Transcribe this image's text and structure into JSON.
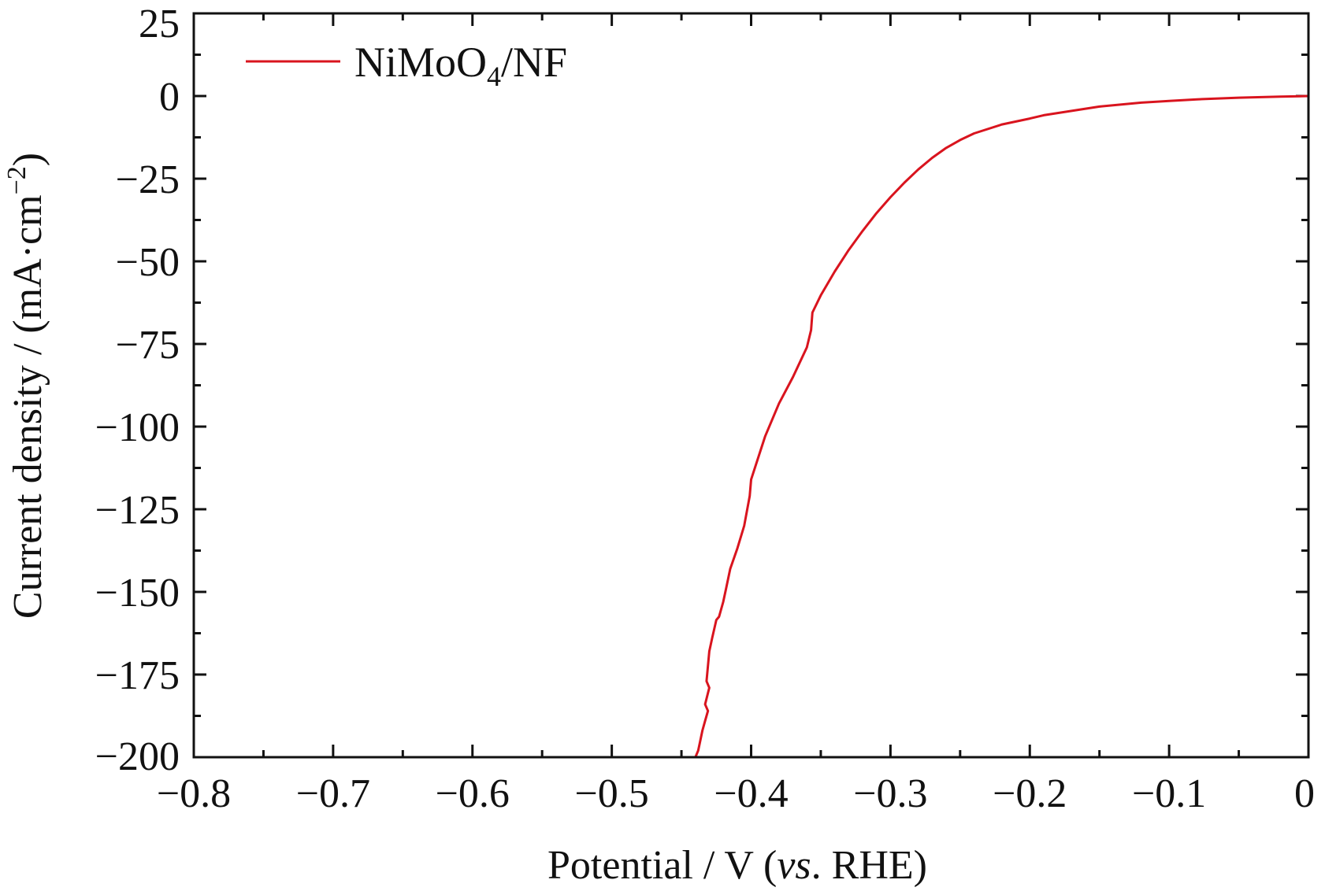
{
  "chart_data": {
    "type": "line",
    "title": "",
    "xlabel": "Potential / V (vs. RHE)",
    "xlabel_parts": {
      "pre": "Potential / V (",
      "italic": "vs",
      "post": ". RHE)"
    },
    "ylabel": "Current density / (mA·cm−2)",
    "ylabel_parts": {
      "pre": "Current density / (mA·cm",
      "sup": "−2",
      "post": ")"
    },
    "xlim": [
      -0.8,
      0
    ],
    "ylim": [
      -200,
      25
    ],
    "x_ticks": [
      -0.8,
      -0.7,
      -0.6,
      -0.5,
      -0.4,
      -0.3,
      -0.2,
      -0.1,
      0
    ],
    "x_tick_labels": [
      "−0.8",
      "−0.7",
      "−0.6",
      "−0.5",
      "−0.4",
      "−0.3",
      "−0.2",
      "−0.1",
      "0"
    ],
    "y_ticks": [
      25,
      0,
      -25,
      -50,
      -75,
      -100,
      -125,
      -150,
      -175,
      -200
    ],
    "y_tick_labels": [
      "25",
      "0",
      "−25",
      "−50",
      "−75",
      "−100",
      "−125",
      "−150",
      "−175",
      "−200"
    ],
    "grid": false,
    "legend_position": "top-left",
    "series": [
      {
        "name": "NiMoO4/NF",
        "legend_parts": {
          "pre": "NiMoO",
          "sub": "4",
          "post": "/NF"
        },
        "color": "#d9141e",
        "x": [
          0,
          -0.02,
          -0.05,
          -0.08,
          -0.1,
          -0.12,
          -0.15,
          -0.17,
          -0.19,
          -0.2,
          -0.22,
          -0.24,
          -0.25,
          -0.26,
          -0.27,
          -0.28,
          -0.29,
          -0.3,
          -0.31,
          -0.32,
          -0.33,
          -0.34,
          -0.35,
          -0.356,
          -0.357,
          -0.36,
          -0.37,
          -0.38,
          -0.39,
          -0.4,
          -0.401,
          -0.405,
          -0.41,
          -0.415,
          -0.418,
          -0.42,
          -0.423,
          -0.425,
          -0.428,
          -0.43,
          -0.432,
          -0.43,
          -0.433,
          -0.431,
          -0.433,
          -0.435,
          -0.437,
          -0.438,
          -0.44,
          -0.441,
          -0.443
        ],
        "y": [
          0,
          -0.2,
          -0.5,
          -1.0,
          -1.5,
          -2.0,
          -3.2,
          -4.5,
          -5.8,
          -6.8,
          -8.6,
          -11.3,
          -13.3,
          -15.7,
          -18.7,
          -22.2,
          -26.2,
          -30.6,
          -35.4,
          -40.8,
          -46.6,
          -53.1,
          -60.3,
          -65.5,
          -70.8,
          -76,
          -85,
          -93,
          -103,
          -116,
          -121,
          -130,
          -137,
          -143,
          -149,
          -153,
          -157.5,
          -158.5,
          -164,
          -168,
          -177,
          -179,
          -184,
          -186,
          -189,
          -192,
          -196,
          -198,
          -200,
          -200,
          -200
        ]
      }
    ]
  }
}
